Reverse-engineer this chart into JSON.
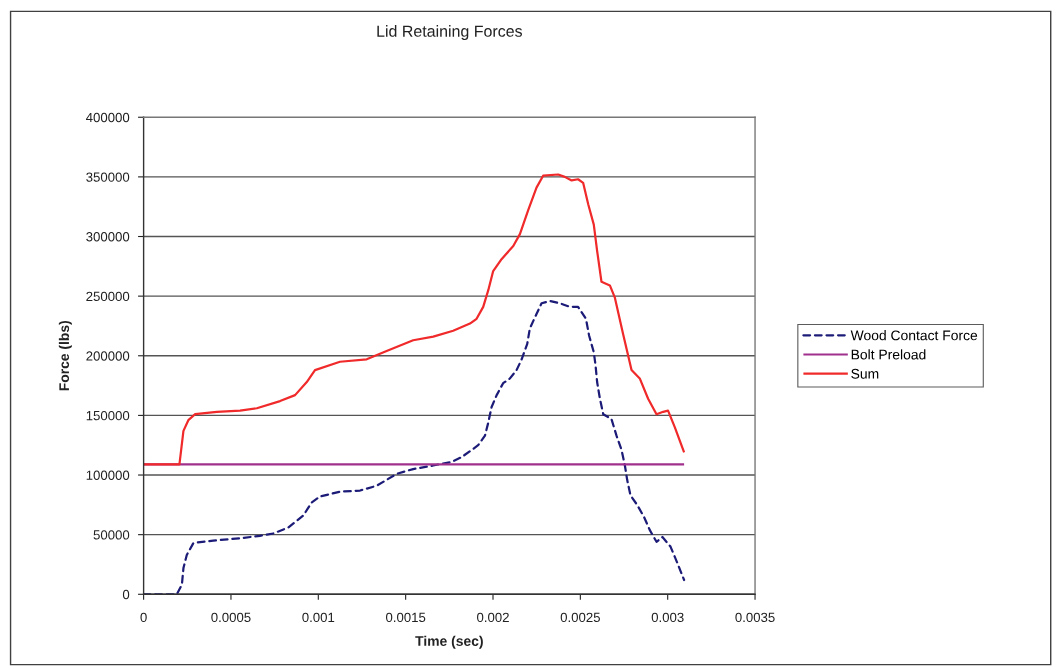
{
  "chart_data": {
    "type": "line",
    "title": "Lid Retaining Forces",
    "xlabel": "Time (sec)",
    "ylabel": "Force (lbs)",
    "xlim": [
      0,
      0.0035
    ],
    "xticks": [
      0,
      0.0005,
      0.001,
      0.0015,
      0.002,
      0.0025,
      0.003,
      0.0035
    ],
    "ylim": [
      0,
      400000
    ],
    "yticks": [
      0,
      50000,
      100000,
      150000,
      200000,
      250000,
      300000,
      350000,
      400000
    ],
    "grid": "y",
    "legend": "right",
    "marker": "none",
    "series": [
      {
        "name": "Wood Contact Force",
        "color": "#1c1c78",
        "line_style": "dashed",
        "x": [
          0,
          0.00019,
          0.000219,
          0.000228,
          0.000247,
          0.000285,
          0.000399,
          0.000552,
          0.000666,
          0.000743,
          0.000828,
          0.000914,
          0.000962,
          0.00101,
          0.001124,
          0.001239,
          0.001334,
          0.001391,
          0.001449,
          0.001543,
          0.001658,
          0.001763,
          0.00182,
          0.001878,
          0.001915,
          0.001954,
          0.001973,
          0.001992,
          0.002021,
          0.002058,
          0.002097,
          0.002135,
          0.002164,
          0.002196,
          0.002211,
          0.002249,
          0.002278,
          0.002326,
          0.002383,
          0.00244,
          0.002487,
          0.002532,
          0.00255,
          0.002577,
          0.002587,
          0.002596,
          0.002612,
          0.002631,
          0.002678,
          0.002707,
          0.002736,
          0.002755,
          0.002768,
          0.002787,
          0.002825,
          0.002864,
          0.002897,
          0.002936,
          0.00297,
          0.003016,
          0.003056,
          0.003094
        ],
        "values": [
          0,
          0,
          8000,
          22000,
          33000,
          43000,
          45000,
          47000,
          49000,
          51000,
          56000,
          66000,
          77000,
          82000,
          86000,
          87000,
          91000,
          96000,
          101000,
          105000,
          108000,
          111000,
          115000,
          121000,
          125000,
          133000,
          144000,
          157000,
          167000,
          177000,
          181000,
          188000,
          197000,
          210000,
          223000,
          235000,
          244000,
          246000,
          244000,
          241000,
          241000,
          231000,
          217000,
          203000,
          192000,
          178000,
          164000,
          151000,
          147000,
          133000,
          121000,
          108000,
          96000,
          83000,
          75000,
          65000,
          54000,
          44000,
          48000,
          40000,
          26000,
          12000
        ]
      },
      {
        "name": "Bolt Preload",
        "color": "#a0308c",
        "line_style": "solid",
        "x": [
          0,
          0.003094
        ],
        "values": [
          109000,
          109000
        ]
      },
      {
        "name": "Sum",
        "color": "#f02a2a",
        "line_style": "solid",
        "x": [
          0,
          0.000205,
          0.000228,
          0.000256,
          0.000295,
          0.000419,
          0.000552,
          0.000648,
          0.000781,
          0.000867,
          0.000934,
          0.000981,
          0.001124,
          0.001277,
          0.001391,
          0.001543,
          0.001658,
          0.001772,
          0.001868,
          0.001906,
          0.001944,
          0.001973,
          0.002001,
          0.002049,
          0.002116,
          0.002154,
          0.002201,
          0.002249,
          0.002287,
          0.002373,
          0.002411,
          0.00245,
          0.002487,
          0.002516,
          0.002545,
          0.002577,
          0.002596,
          0.002621,
          0.002669,
          0.002697,
          0.002745,
          0.002793,
          0.00284,
          0.002888,
          0.002936,
          0.002974,
          0.003002,
          0.003041,
          0.003094
        ],
        "values": [
          109000,
          109000,
          137000,
          146000,
          151000,
          153000,
          154000,
          156000,
          162000,
          167000,
          178000,
          188000,
          195000,
          197000,
          204000,
          213000,
          216000,
          221000,
          227000,
          231000,
          241000,
          255000,
          271000,
          281000,
          292000,
          302000,
          322000,
          341000,
          351000,
          352000,
          350000,
          347000,
          348000,
          345000,
          327000,
          310000,
          288000,
          262000,
          259000,
          249000,
          218000,
          188000,
          181000,
          164000,
          151000,
          153000,
          154000,
          140000,
          119000
        ]
      }
    ]
  }
}
